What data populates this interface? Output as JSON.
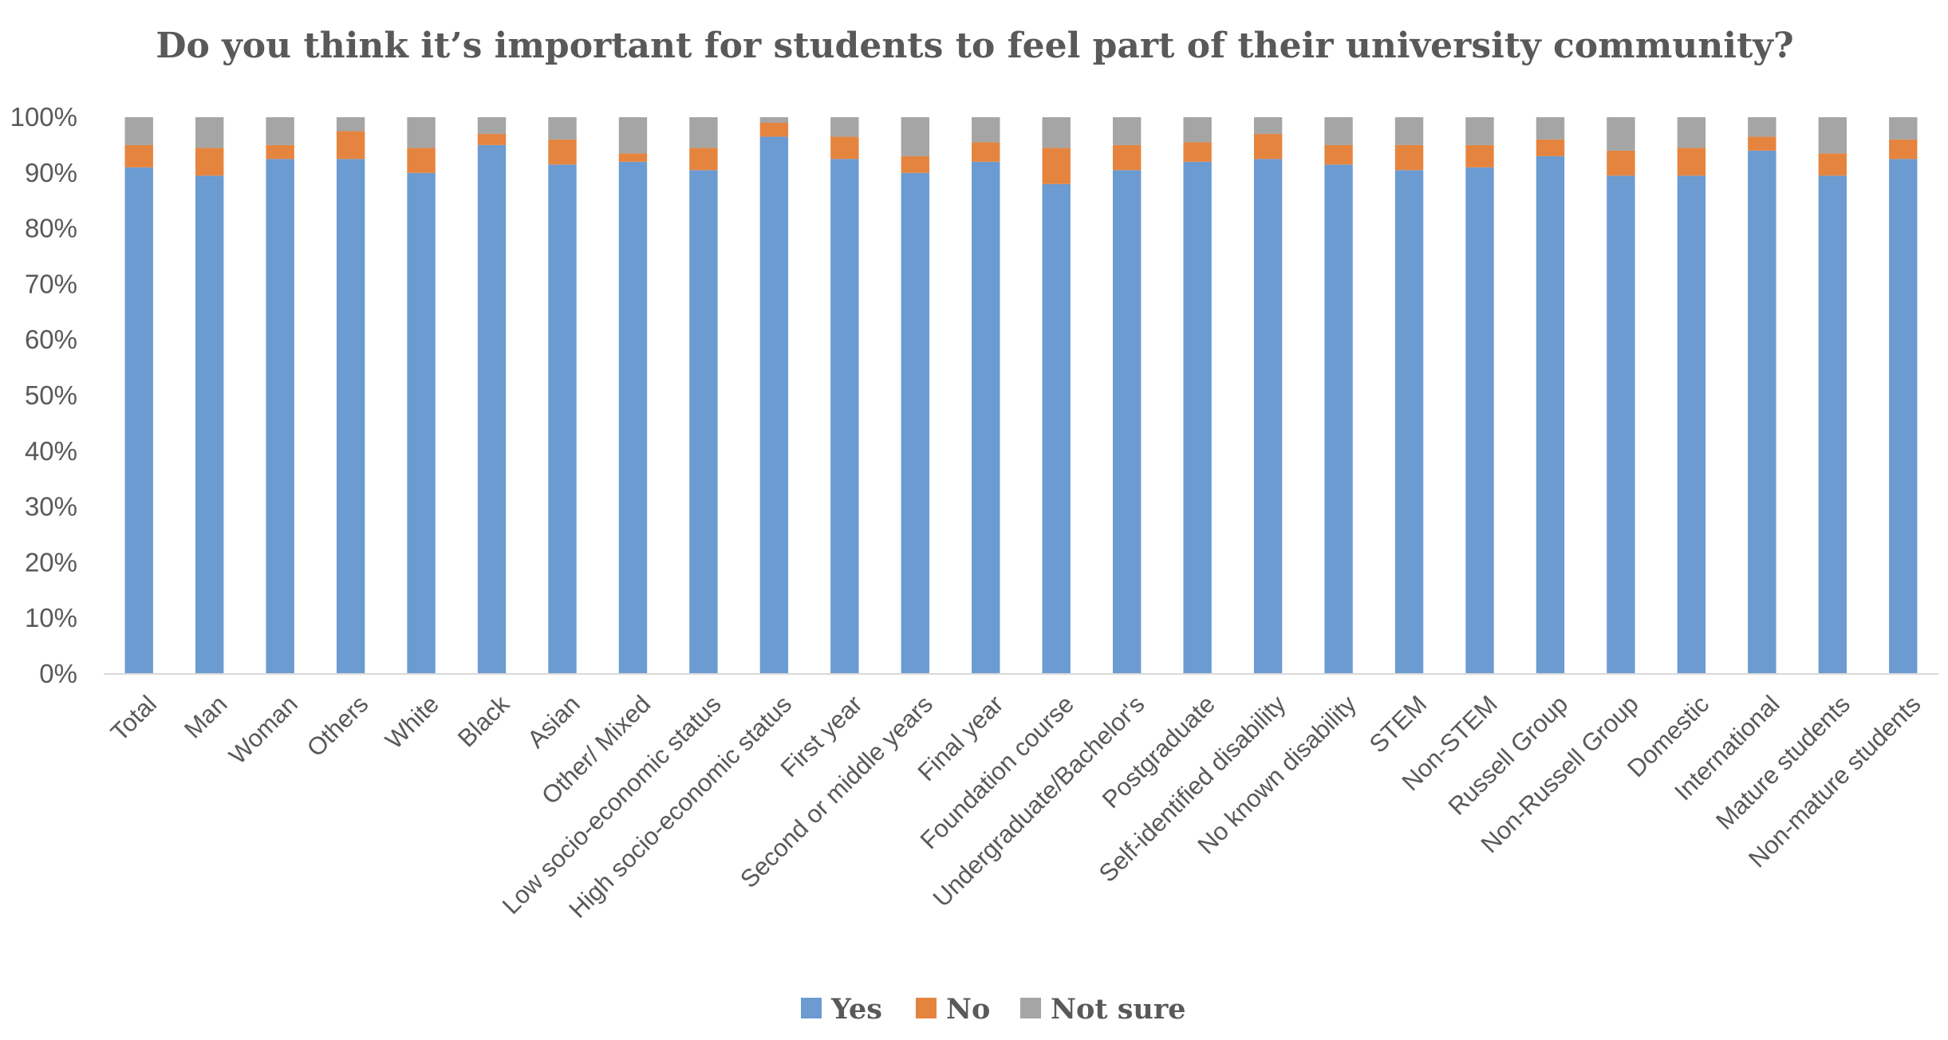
{
  "chart_data": {
    "type": "bar",
    "stacked": true,
    "title": "Do you think it’s important for students to feel part of their university community?",
    "xlabel": "",
    "ylabel": "",
    "ylim": [
      0,
      100
    ],
    "y_ticks": [
      "0%",
      "10%",
      "20%",
      "30%",
      "40%",
      "50%",
      "60%",
      "70%",
      "80%",
      "90%",
      "100%"
    ],
    "categories": [
      "Total",
      "Man",
      "Woman",
      "Others",
      "White",
      "Black",
      "Asian",
      "Other/ Mixed",
      "Low socio-economic status",
      "High socio-economic status",
      "First year",
      "Second or middle years",
      "Final year",
      "Foundation course",
      "Undergraduate/Bachelor's",
      "Postgraduate",
      "Self-identified disability",
      "No known disability",
      "STEM",
      "Non-STEM",
      "Russell Group",
      "Non-Russell Group",
      "Domestic",
      "International",
      "Mature students",
      "Non-mature students"
    ],
    "series": [
      {
        "name": "Yes",
        "color": "#6B9BD1",
        "values": [
          91,
          89.5,
          92.5,
          92.5,
          90,
          95,
          91.5,
          92,
          90.5,
          96.5,
          92.5,
          90,
          92,
          88,
          90.5,
          92,
          92.5,
          91.5,
          90.5,
          91,
          93,
          89.5,
          89.5,
          94,
          89.5,
          92.5
        ]
      },
      {
        "name": "No",
        "color": "#E5843F",
        "values": [
          4,
          5,
          2.5,
          5,
          4.5,
          2,
          4.5,
          1.5,
          4,
          2.5,
          4,
          3,
          3.5,
          6.5,
          4.5,
          3.5,
          4.5,
          3.5,
          4.5,
          4,
          3,
          4.5,
          5,
          2.5,
          4,
          3.5
        ]
      },
      {
        "name": "Not sure",
        "color": "#A5A5A5",
        "values": [
          5,
          5.5,
          5,
          2.5,
          5.5,
          3,
          4,
          6.5,
          5.5,
          1,
          3.5,
          7,
          4.5,
          5.5,
          5,
          4.5,
          3,
          5,
          5,
          5,
          4,
          6,
          5.5,
          3.5,
          6.5,
          4
        ]
      }
    ],
    "legend_position": "bottom",
    "grid": false
  }
}
